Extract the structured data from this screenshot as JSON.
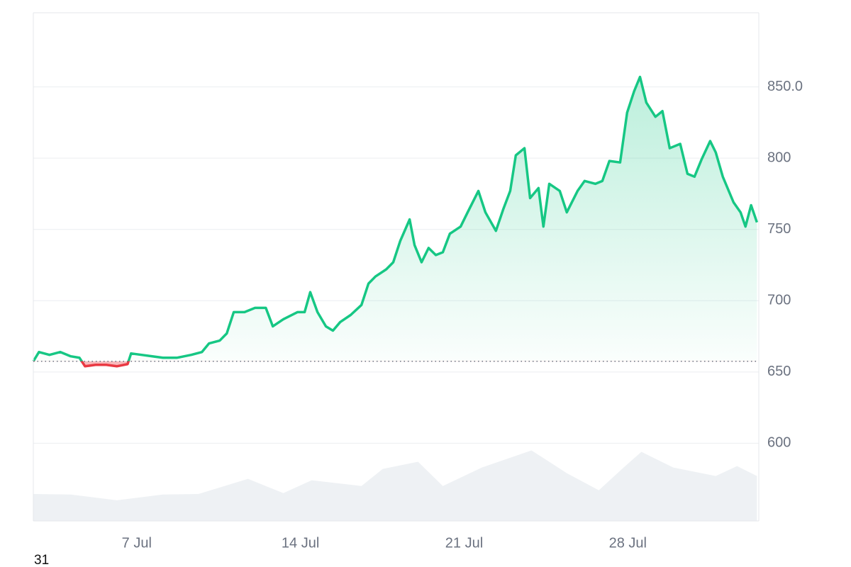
{
  "chart_data": {
    "type": "line",
    "footer_label": "31",
    "baseline": 657.5,
    "up_color": "#16c784",
    "down_color": "#ea3943",
    "volume_color": "#eef1f4",
    "grid": true,
    "xlim": [
      2.58,
      33.6
    ],
    "ylim": [
      545.5,
      902
    ],
    "xticks": [
      {
        "value": 7,
        "label": "7 Jul"
      },
      {
        "value": 14,
        "label": "14 Jul"
      },
      {
        "value": 21,
        "label": "21 Jul"
      },
      {
        "value": 28,
        "label": "28 Jul"
      }
    ],
    "yticks": [
      {
        "value": 850,
        "label": "850.0"
      },
      800,
      750,
      700,
      650,
      600
    ],
    "price": {
      "x": [
        2.58,
        2.82,
        3.27,
        3.73,
        4.18,
        4.55,
        4.79,
        5.24,
        5.7,
        6.15,
        6.61,
        6.76,
        7.21,
        7.67,
        8.12,
        8.73,
        9.33,
        9.79,
        10.09,
        10.55,
        10.85,
        11.15,
        11.61,
        12.06,
        12.52,
        12.82,
        13.27,
        13.88,
        14.18,
        14.42,
        14.73,
        15.09,
        15.39,
        15.7,
        16.15,
        16.61,
        16.91,
        17.21,
        17.67,
        17.97,
        18.27,
        18.67,
        18.88,
        19.18,
        19.48,
        19.79,
        20.09,
        20.39,
        20.85,
        21.15,
        21.61,
        21.91,
        22.36,
        22.67,
        22.97,
        23.21,
        23.58,
        23.82,
        24.18,
        24.39,
        24.64,
        25.09,
        25.39,
        25.85,
        26.15,
        26.61,
        26.91,
        27.21,
        27.67,
        27.97,
        28.27,
        28.52,
        28.79,
        29.18,
        29.48,
        29.79,
        30.24,
        30.55,
        30.85,
        31.15,
        31.52,
        31.76,
        32.06,
        32.52,
        32.82,
        33.03,
        33.27,
        33.52
      ],
      "values": [
        657.5,
        664,
        662,
        664,
        661,
        660,
        654,
        655,
        655,
        654,
        655.5,
        663,
        662,
        661,
        660,
        660,
        662,
        664,
        670,
        672,
        677,
        692,
        692,
        695,
        695,
        682,
        687,
        692,
        692,
        706,
        692,
        682,
        679,
        685,
        690,
        697,
        712,
        717,
        722,
        727,
        742,
        757,
        739,
        727,
        737,
        732,
        734,
        747,
        752,
        762,
        777,
        762,
        749,
        764,
        777,
        802,
        807,
        772,
        779,
        752,
        782,
        777,
        762,
        777,
        784,
        782,
        784,
        798,
        797,
        832,
        847,
        857,
        839,
        829,
        833,
        807,
        810,
        789,
        787,
        799,
        812,
        804,
        787,
        769,
        762,
        752,
        767,
        755
      ]
    },
    "volume": {
      "x": [
        2.58,
        4.18,
        6.15,
        8.12,
        9.64,
        11.76,
        13.27,
        14.48,
        16.61,
        17.52,
        19.03,
        20.09,
        21.76,
        23.88,
        25.39,
        26.76,
        27.82,
        28.58,
        29.94,
        31.76,
        32.67,
        33.52
      ],
      "values": [
        564.4,
        564,
        560,
        564,
        564.4,
        575,
        565,
        574,
        570,
        582,
        587,
        570,
        583,
        595,
        579,
        567,
        583,
        594,
        583,
        577,
        584,
        577
      ]
    }
  }
}
